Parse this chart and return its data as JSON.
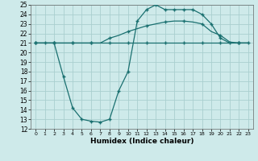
{
  "title": "",
  "xlabel": "Humidex (Indice chaleur)",
  "xlim": [
    -0.5,
    23.5
  ],
  "ylim": [
    12,
    25
  ],
  "xticks": [
    0,
    1,
    2,
    3,
    4,
    5,
    6,
    7,
    8,
    9,
    10,
    11,
    12,
    13,
    14,
    15,
    16,
    17,
    18,
    19,
    20,
    21,
    22,
    23
  ],
  "yticks": [
    12,
    13,
    14,
    15,
    16,
    17,
    18,
    19,
    20,
    21,
    22,
    23,
    24,
    25
  ],
  "bg_color": "#ceeaea",
  "grid_color": "#aacfcf",
  "line_color": "#1a7070",
  "line1_x": [
    0,
    1,
    2,
    3,
    4,
    5,
    6,
    7,
    8,
    9,
    10,
    11,
    12,
    13,
    14,
    15,
    16,
    17,
    18,
    19,
    20,
    21,
    22,
    23
  ],
  "line1_y": [
    21,
    21,
    21,
    21,
    21,
    21,
    21,
    21,
    21,
    21,
    21,
    21,
    21,
    21,
    21,
    21,
    21,
    21,
    21,
    21,
    21,
    21,
    21,
    21
  ],
  "line2_x": [
    0,
    1,
    2,
    3,
    4,
    5,
    6,
    7,
    8,
    9,
    10,
    11,
    12,
    13,
    14,
    15,
    16,
    17,
    18,
    19,
    20,
    21,
    22,
    23
  ],
  "line2_y": [
    21,
    21,
    21,
    21,
    21,
    21,
    21,
    21,
    21.5,
    21.8,
    22.2,
    22.5,
    22.8,
    23.0,
    23.2,
    23.3,
    23.3,
    23.2,
    23.0,
    22.2,
    21.8,
    21.1,
    21.0,
    21.0
  ],
  "line3_x": [
    0,
    1,
    2,
    3,
    4,
    5,
    6,
    7,
    8,
    9,
    10,
    11,
    12,
    13,
    14,
    15,
    16,
    17,
    18,
    19,
    20,
    21,
    22,
    23
  ],
  "line3_y": [
    21,
    21,
    21,
    17.5,
    14.2,
    13.0,
    12.8,
    12.7,
    13.0,
    16.0,
    18.0,
    23.3,
    24.5,
    25.0,
    24.5,
    24.5,
    24.5,
    24.5,
    24.0,
    23.0,
    21.5,
    21.0,
    21.0,
    21.0
  ],
  "line1_markers": [
    0,
    2,
    4,
    6,
    8,
    10,
    12,
    14,
    16,
    18,
    20,
    22
  ],
  "line2_markers": [
    0,
    2,
    4,
    6,
    8,
    10,
    12,
    14,
    16,
    18,
    20,
    22
  ],
  "line3_markers": [
    0,
    1,
    2,
    3,
    4,
    5,
    6,
    7,
    8,
    9,
    10,
    11,
    12,
    13,
    14,
    15,
    16,
    17,
    18,
    19,
    20,
    21,
    22,
    23
  ],
  "linewidth": 0.9,
  "markersize": 3.0,
  "xlabel_fontsize": 6.5,
  "tick_fontsize": 5.5
}
